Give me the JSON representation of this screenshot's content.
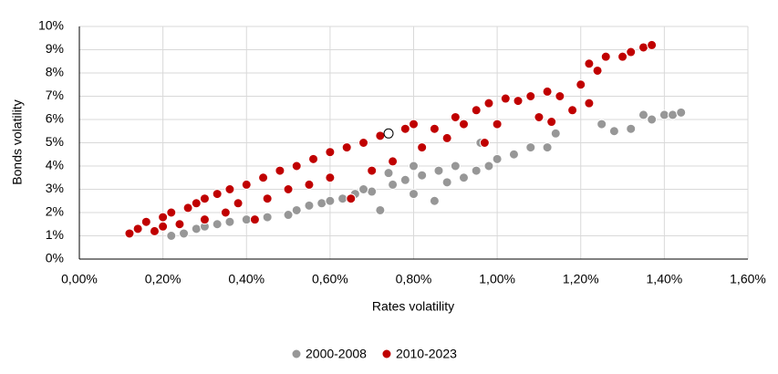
{
  "chart_data": {
    "type": "scatter",
    "x_label": "Rates volatility",
    "y_label": "Bonds volatility",
    "xlim": [
      0,
      1.6
    ],
    "ylim": [
      0,
      10
    ],
    "xticks": [
      {
        "value": 0,
        "label": "0,00%"
      },
      {
        "value": 0.2,
        "label": "0,20%"
      },
      {
        "value": 0.4,
        "label": "0,40%"
      },
      {
        "value": 0.6,
        "label": "0,60%"
      },
      {
        "value": 0.8,
        "label": "0,80%"
      },
      {
        "value": 1.0,
        "label": "1,00%"
      },
      {
        "value": 1.2,
        "label": "1,20%"
      },
      {
        "value": 1.4,
        "label": "1,40%"
      },
      {
        "value": 1.6,
        "label": "1,60%"
      }
    ],
    "yticks": [
      {
        "value": 0,
        "label": "0%"
      },
      {
        "value": 1,
        "label": "1%"
      },
      {
        "value": 2,
        "label": "2%"
      },
      {
        "value": 3,
        "label": "3%"
      },
      {
        "value": 4,
        "label": "4%"
      },
      {
        "value": 5,
        "label": "5%"
      },
      {
        "value": 6,
        "label": "6%"
      },
      {
        "value": 7,
        "label": "7%"
      },
      {
        "value": 8,
        "label": "8%"
      },
      {
        "value": 9,
        "label": "9%"
      },
      {
        "value": 10,
        "label": "10%"
      }
    ],
    "grid": true,
    "legend": "bottom",
    "series": [
      {
        "name": "2000-2008",
        "color": "#979797",
        "x": [
          0.22,
          0.25,
          0.28,
          0.3,
          0.33,
          0.36,
          0.4,
          0.45,
          0.5,
          0.52,
          0.55,
          0.58,
          0.6,
          0.63,
          0.66,
          0.7,
          0.72,
          0.75,
          0.78,
          0.8,
          0.82,
          0.85,
          0.86,
          0.88,
          0.9,
          0.92,
          0.95,
          0.98,
          1.0,
          1.04,
          1.08,
          1.12,
          1.14,
          0.96,
          1.25,
          1.28,
          1.32,
          1.35,
          1.37,
          1.4,
          1.42,
          1.44,
          0.68,
          0.74,
          0.8
        ],
        "values": [
          1.0,
          1.1,
          1.3,
          1.4,
          1.5,
          1.6,
          1.7,
          1.8,
          1.9,
          2.1,
          2.3,
          2.4,
          2.5,
          2.6,
          2.8,
          2.9,
          2.1,
          3.2,
          3.4,
          2.8,
          3.6,
          2.5,
          3.8,
          3.3,
          4.0,
          3.5,
          3.8,
          4.0,
          4.3,
          4.5,
          4.8,
          4.8,
          5.4,
          5.0,
          5.8,
          5.5,
          5.6,
          6.2,
          6.0,
          6.2,
          6.2,
          6.3,
          3.0,
          3.7,
          4.0
        ]
      },
      {
        "name": "2010-2023",
        "color": "#c00000",
        "x": [
          0.12,
          0.14,
          0.16,
          0.18,
          0.2,
          0.2,
          0.22,
          0.24,
          0.26,
          0.28,
          0.3,
          0.3,
          0.33,
          0.35,
          0.36,
          0.38,
          0.4,
          0.42,
          0.44,
          0.45,
          0.48,
          0.5,
          0.52,
          0.55,
          0.56,
          0.6,
          0.6,
          0.64,
          0.65,
          0.68,
          0.7,
          0.72,
          0.75,
          0.78,
          0.8,
          0.82,
          0.85,
          0.88,
          0.9,
          0.92,
          0.95,
          0.97,
          0.98,
          1.0,
          1.02,
          1.05,
          1.08,
          1.1,
          1.12,
          1.13,
          1.15,
          1.18,
          1.2,
          1.22,
          1.22,
          1.24,
          1.26,
          1.3,
          1.32,
          1.35,
          1.37
        ],
        "values": [
          1.1,
          1.3,
          1.6,
          1.2,
          1.8,
          1.4,
          2.0,
          1.5,
          2.2,
          2.4,
          1.7,
          2.6,
          2.8,
          2.0,
          3.0,
          2.4,
          3.2,
          1.7,
          3.5,
          2.6,
          3.8,
          3.0,
          4.0,
          3.2,
          4.3,
          4.6,
          3.5,
          4.8,
          2.6,
          5.0,
          3.8,
          5.3,
          4.2,
          5.6,
          5.8,
          4.8,
          5.6,
          5.2,
          6.1,
          5.8,
          6.4,
          5.0,
          6.7,
          5.8,
          6.9,
          6.8,
          7.0,
          6.1,
          7.2,
          5.9,
          7.0,
          6.4,
          7.5,
          6.7,
          8.4,
          8.1,
          8.7,
          8.7,
          8.9,
          9.1,
          9.2
        ]
      },
      {
        "color": "#ffffff",
        "x": [
          0.74
        ],
        "values": [
          5.4
        ]
      }
    ]
  }
}
